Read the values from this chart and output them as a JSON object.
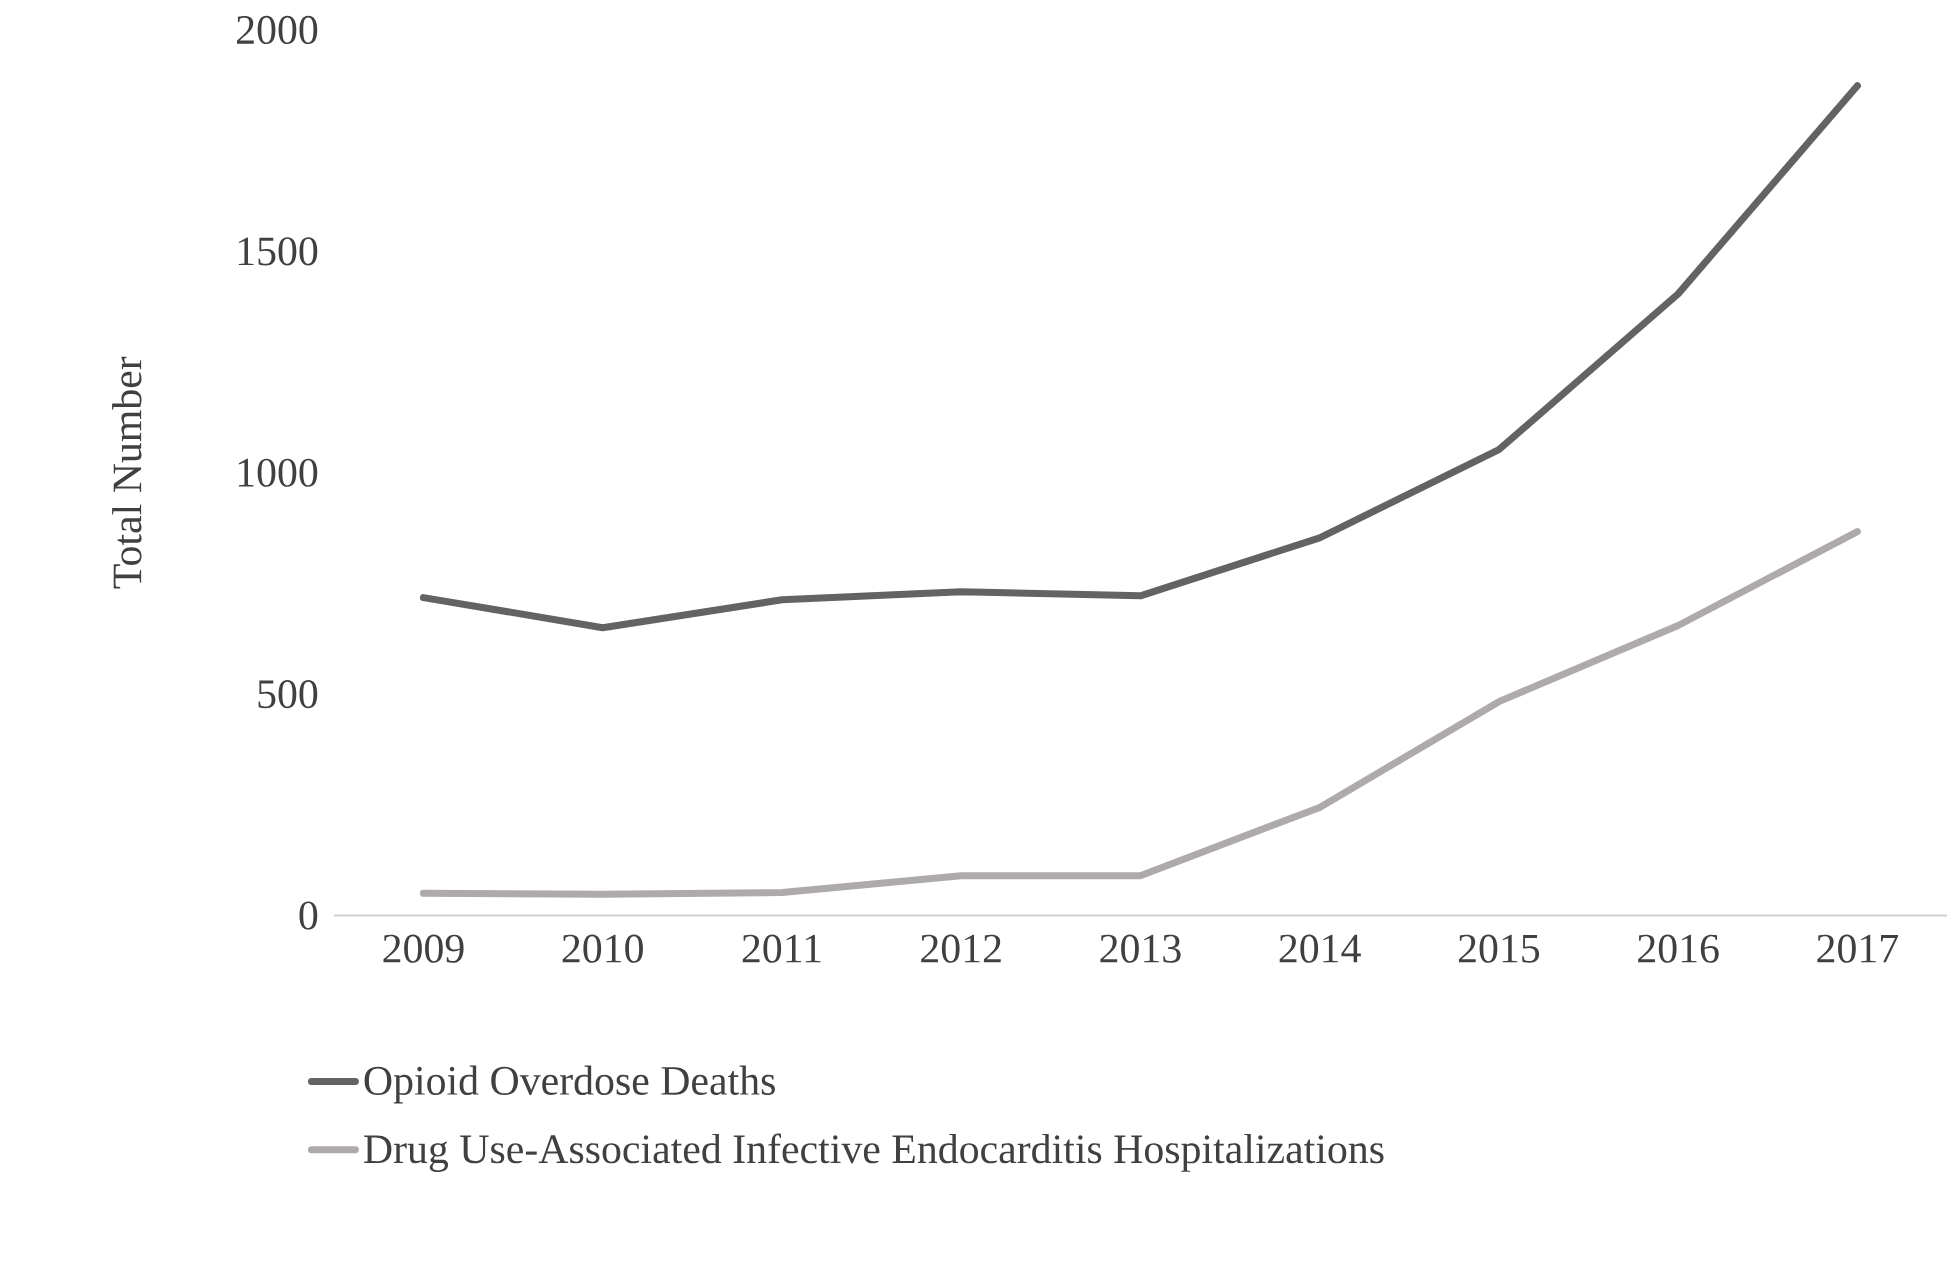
{
  "chart_data": {
    "type": "line",
    "ylabel": "Total Number",
    "categories": [
      "2009",
      "2010",
      "2011",
      "2012",
      "2013",
      "2014",
      "2015",
      "2016",
      "2017"
    ],
    "series": [
      {
        "name": "Opioid Overdose Deaths",
        "color": "#636363",
        "values": [
          718,
          650,
          713,
          731,
          722,
          853,
          1052,
          1404,
          1874
        ]
      },
      {
        "name": "Drug Use-Associated Infective Endocarditis Hospitalizations",
        "color": "#aeaaaa",
        "values": [
          50,
          48,
          52,
          90,
          90,
          244,
          483,
          655,
          867
        ]
      }
    ],
    "ylim": [
      0,
      2000
    ],
    "yticks": [
      0,
      500,
      1000,
      1500,
      2000
    ],
    "grid": false,
    "legend": "bottom",
    "marker": "none",
    "line_style": "solid"
  }
}
